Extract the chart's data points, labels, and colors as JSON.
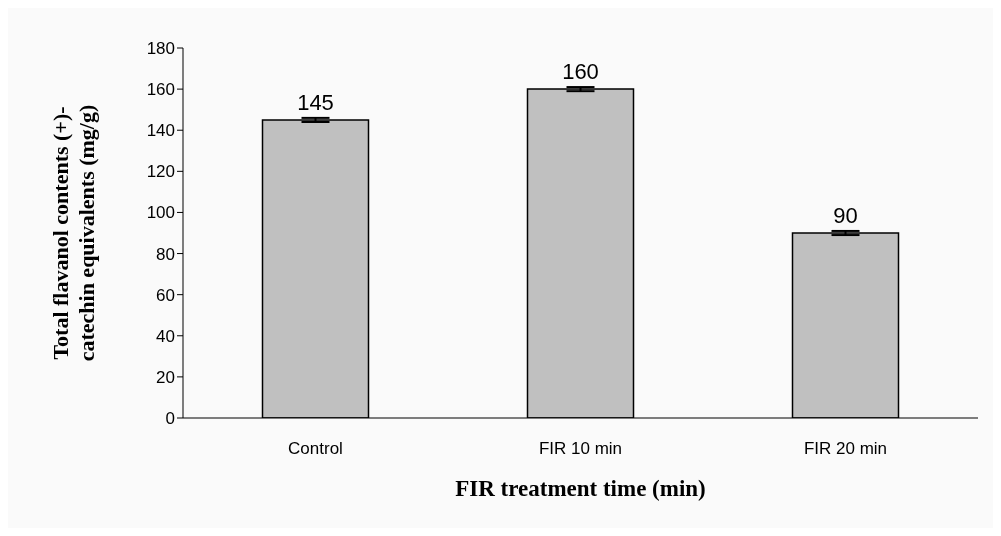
{
  "chart_data": {
    "type": "bar",
    "xlabel": "FIR treatment time (min)",
    "ylabel": "Total flavanol contents (+)-\ncatechin equivalents (mg/g)",
    "categories": [
      "Control",
      "FIR 10 min",
      "FIR 20 min"
    ],
    "values": [
      145,
      160,
      90
    ],
    "errors": [
      1,
      1,
      1
    ],
    "color": "#c0c0c0",
    "ylim": [
      0,
      180
    ],
    "yticks": [
      0,
      20,
      40,
      60,
      80,
      100,
      120,
      140,
      160,
      180
    ],
    "grid": false,
    "data_labels": true
  }
}
